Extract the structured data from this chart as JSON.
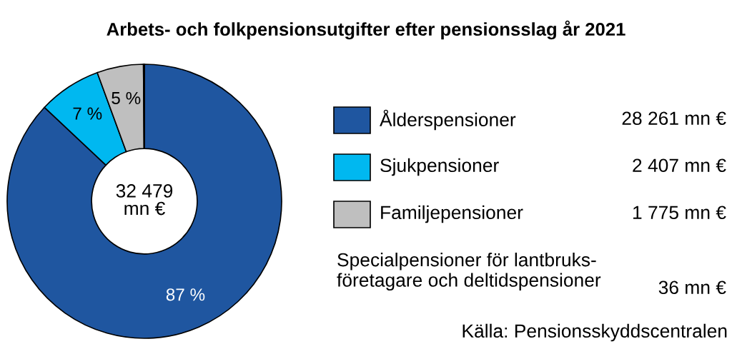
{
  "chart_data": {
    "type": "donut",
    "title": "Arbets- och folkpensionsutgifter efter pensionsslag år 2021",
    "categories": [
      "Ålderspensioner",
      "Sjukpensioner",
      "Familjepensioner",
      null
    ],
    "values": [
      87.01,
      7.41,
      5.47,
      0.11
    ],
    "colors": [
      "#1f56a0",
      "#00b8f0",
      "#bfbfbf",
      "#1a1a1a"
    ],
    "value_labels": [
      "87 %",
      "7 %",
      "5 %",
      null
    ],
    "annotations": [
      "28 261 mn €",
      "2 407 mn €",
      "1 775 mn €",
      "36 mn €",
      "Specialpensioner för lantbruks-\nföretagare och deltidspensioner",
      "32 479\nmn €",
      "Källa: Pensionsskyddscentralen"
    ],
    "legend": "right"
  }
}
